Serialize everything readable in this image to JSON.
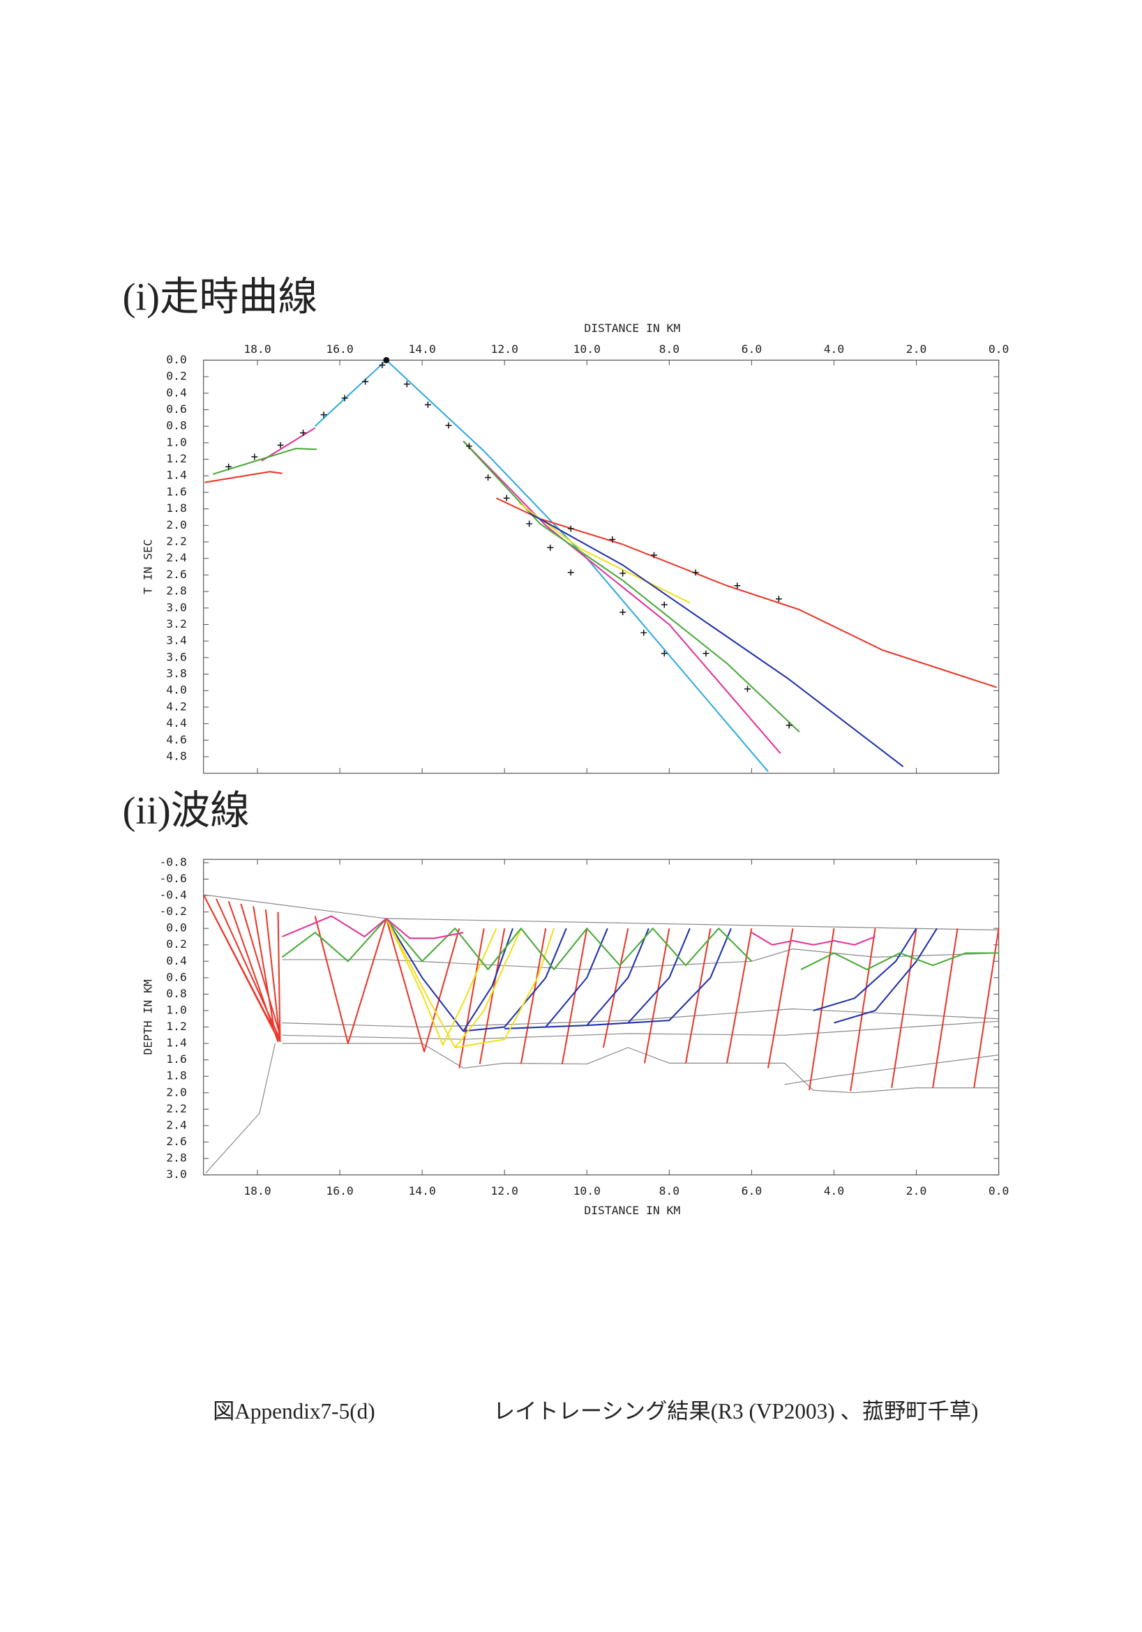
{
  "chart_data": [
    {
      "type": "line",
      "title": "(i)走時曲線",
      "xlabel": "DISTANCE IN KM",
      "ylabel": "T IN SEC",
      "xaxis_position": "top",
      "grid": false,
      "xlim": [
        19.31,
        0
      ],
      "ylim": [
        0,
        5.0
      ],
      "xticks": [
        {
          "value": 18,
          "label": "18.0"
        },
        {
          "value": 16,
          "label": "16.0"
        },
        {
          "value": 14,
          "label": "14.0"
        },
        {
          "value": 12,
          "label": "12.0"
        },
        {
          "value": 10,
          "label": "10.0"
        },
        {
          "value": 8,
          "label": "8.0"
        },
        {
          "value": 6,
          "label": "6.0"
        },
        {
          "value": 4,
          "label": "4.0"
        },
        {
          "value": 2,
          "label": "2.0"
        },
        {
          "value": 0,
          "label": "0.0"
        }
      ],
      "yticks": [
        {
          "value": 0,
          "label": "0.0"
        },
        0.2,
        0.4,
        0.6,
        0.8,
        {
          "value": 1,
          "label": "1.0"
        },
        1.2,
        1.4,
        1.6,
        1.8,
        {
          "value": 2,
          "label": "2.0"
        },
        2.2,
        2.4,
        2.6,
        2.8,
        {
          "value": 3,
          "label": "3.0"
        },
        3.2,
        3.4,
        3.6,
        3.8,
        {
          "value": 4,
          "label": "4.0"
        },
        4.2,
        4.4,
        4.6,
        4.8
      ],
      "series": [
        {
          "color": "#33aadd",
          "x": [
            16.6,
            14.87,
            12.5,
            10.0,
            5.6
          ],
          "values": [
            0.8,
            0,
            1.1,
            2.4,
            4.98
          ]
        },
        {
          "color": "#e0359a",
          "x": [
            17.9,
            16.6
          ],
          "values": [
            1.22,
            0.82
          ]
        },
        {
          "color": "#e0359a",
          "x": [
            13.0,
            11.0,
            8.0,
            5.3
          ],
          "values": [
            0.98,
            2.0,
            3.2,
            4.76
          ]
        },
        {
          "color": "#4aaa3a",
          "x": [
            19.08,
            17.07,
            16.56
          ],
          "values": [
            1.38,
            1.07,
            1.08
          ]
        },
        {
          "color": "#4aaa3a",
          "x": [
            13.0,
            11.14,
            9.12,
            6.6,
            4.84
          ],
          "values": [
            0.98,
            1.98,
            2.67,
            3.67,
            4.5
          ]
        },
        {
          "color": "#e8392c",
          "x": [
            19.28,
            17.7,
            17.4
          ],
          "values": [
            1.48,
            1.35,
            1.37
          ]
        },
        {
          "color": "#e8392c",
          "x": [
            12.2,
            11.14,
            9.13,
            6.6,
            4.84,
            2.82,
            0.05
          ],
          "values": [
            1.67,
            1.92,
            2.23,
            2.73,
            3.02,
            3.51,
            3.96
          ]
        },
        {
          "color": "#f0e020",
          "x": [
            11.65,
            10.13,
            7.49
          ],
          "values": [
            1.73,
            2.29,
            2.94
          ]
        },
        {
          "color": "#2233aa",
          "x": [
            11.4,
            9.13,
            5.1,
            2.32
          ],
          "values": [
            1.85,
            2.48,
            3.86,
            4.92
          ]
        },
        {
          "color": "#111111",
          "marker": "+",
          "x": [
            18.7,
            18.07,
            17.44,
            16.89,
            16.39,
            15.88,
            15.38,
            14.97,
            14.37,
            13.86,
            13.36,
            12.86,
            12.4,
            11.95,
            11.4,
            10.89,
            10.39,
            9.13,
            8.62,
            8.12,
            10.39,
            9.38,
            8.37,
            7.36,
            6.35,
            5.34,
            9.13,
            8.12,
            7.11,
            6.1,
            5.09
          ],
          "values": [
            1.29,
            1.17,
            1.03,
            0.88,
            0.66,
            0.46,
            0.26,
            0.06,
            0.29,
            0.54,
            0.79,
            1.04,
            1.42,
            1.67,
            1.98,
            2.27,
            2.57,
            3.05,
            3.3,
            3.55,
            2.04,
            2.17,
            2.36,
            2.57,
            2.73,
            2.89,
            2.58,
            2.96,
            3.55,
            3.98,
            4.42
          ]
        },
        {
          "color": "#111111",
          "marker": "dot",
          "x": [
            14.87
          ],
          "values": [
            0
          ]
        }
      ]
    },
    {
      "type": "line",
      "title": "(ii)波線",
      "xlabel": "DISTANCE IN KM",
      "ylabel": "DEPTH IN KM",
      "xaxis_position": "bottom",
      "grid": false,
      "xlim": [
        19.31,
        0
      ],
      "ylim": [
        -0.84,
        3.0
      ],
      "xticks": [
        {
          "value": 18,
          "label": "18.0"
        },
        {
          "value": 16,
          "label": "16.0"
        },
        {
          "value": 14,
          "label": "14.0"
        },
        {
          "value": 12,
          "label": "12.0"
        },
        {
          "value": 10,
          "label": "10.0"
        },
        {
          "value": 8,
          "label": "8.0"
        },
        {
          "value": 6,
          "label": "6.0"
        },
        {
          "value": 4,
          "label": "4.0"
        },
        {
          "value": 2,
          "label": "2.0"
        },
        {
          "value": 0,
          "label": "0.0"
        }
      ],
      "yticks": [
        -0.8,
        -0.6,
        -0.4,
        -0.2,
        {
          "value": 0,
          "label": "0.0"
        },
        0.2,
        0.4,
        0.6,
        0.8,
        {
          "value": 1,
          "label": "1.0"
        },
        1.2,
        1.4,
        1.6,
        1.8,
        {
          "value": 2,
          "label": "2.0"
        },
        2.2,
        2.4,
        2.6,
        2.8,
        {
          "value": 3,
          "label": "3.0"
        }
      ],
      "series": [
        {
          "color": "#888888",
          "x": [
            19.31,
            14.87,
            0
          ],
          "values": [
            -0.41,
            -0.12,
            0.02
          ]
        },
        {
          "color": "#888888",
          "x": [
            17.4,
            14.9,
            10.1,
            6.0,
            5.0,
            3.0,
            0
          ],
          "values": [
            0.38,
            0.38,
            0.5,
            0.4,
            0.25,
            0.35,
            0.3
          ]
        },
        {
          "color": "#888888",
          "x": [
            17.4,
            14.0,
            12.0,
            9.0,
            5.0,
            0
          ],
          "values": [
            1.15,
            1.2,
            1.17,
            1.12,
            0.98,
            1.1
          ]
        },
        {
          "color": "#888888",
          "x": [
            17.4,
            13.0,
            9.0,
            5.2,
            0
          ],
          "values": [
            1.3,
            1.35,
            1.28,
            1.3,
            1.13
          ]
        },
        {
          "color": "#888888",
          "x": [
            17.4,
            14.0,
            13.0,
            12.0,
            10.0,
            9.0,
            8.0,
            5.2,
            4.5,
            3.5,
            2.0,
            0
          ],
          "values": [
            1.4,
            1.4,
            1.7,
            1.64,
            1.65,
            1.45,
            1.64,
            1.64,
            1.97,
            2.0,
            1.94,
            1.94
          ]
        },
        {
          "color": "#888888",
          "x": [
            17.57,
            17.95,
            19.26
          ],
          "values": [
            1.4,
            2.25,
            2.98
          ]
        },
        {
          "color": "#888888",
          "x": [
            0,
            4.0,
            5.2
          ],
          "values": [
            1.54,
            1.8,
            1.9
          ]
        },
        {
          "color": "#e8392c",
          "x": [
            19.3,
            17.45,
            null,
            19.3,
            17.55,
            null,
            19.0,
            17.45,
            null,
            18.7,
            17.5,
            null,
            18.4,
            17.45,
            null,
            18.1,
            17.6,
            null,
            17.8,
            17.45,
            null,
            17.5,
            17.45
          ],
          "values": [
            -0.4,
            1.38,
            null,
            -0.4,
            1.3,
            null,
            -0.36,
            1.35,
            null,
            -0.33,
            1.38,
            null,
            -0.3,
            1.3,
            null,
            -0.27,
            1.2,
            null,
            -0.23,
            1.38,
            null,
            -0.2,
            1.38
          ]
        },
        {
          "color": "#e8392c",
          "x": [
            16.6,
            15.8,
            14.87,
            13.95,
            13.1,
            null,
            12.5,
            13.1,
            null,
            12.0,
            12.6,
            null,
            11.0,
            11.6,
            null,
            10.0,
            10.6,
            null,
            9.0,
            9.6,
            null,
            8.0,
            8.6,
            null,
            7.0,
            7.6,
            null,
            6.0,
            6.6,
            null,
            5.0,
            5.6,
            null,
            4.0,
            4.6,
            null,
            3.0,
            3.6,
            null,
            2.0,
            2.6,
            null,
            1.0,
            1.6,
            null,
            0.0,
            0.6
          ],
          "values": [
            -0.15,
            1.4,
            -0.12,
            1.5,
            0.0,
            null,
            0.0,
            1.7,
            null,
            0.0,
            1.65,
            null,
            0.0,
            1.65,
            null,
            0.0,
            1.65,
            null,
            0.0,
            1.45,
            null,
            0.0,
            1.64,
            null,
            0.0,
            1.64,
            null,
            0.0,
            1.64,
            null,
            0.0,
            1.7,
            null,
            0.0,
            1.97,
            null,
            0.0,
            1.98,
            null,
            0.0,
            1.94,
            null,
            0.0,
            1.94,
            null,
            0.0,
            1.94
          ]
        },
        {
          "color": "#2233aa",
          "x": [
            14.87,
            14.0,
            13.0,
            12.3,
            11.8,
            null,
            13.0,
            12.0,
            11.0,
            10.5,
            null,
            12.0,
            11.0,
            10.0,
            9.5,
            null,
            11.0,
            10.0,
            9.0,
            8.5,
            null,
            10.0,
            9.0,
            8.0,
            7.5,
            null,
            9.0,
            8.0,
            7.0,
            6.5,
            null,
            4.5,
            3.5,
            2.5,
            2.0,
            null,
            4.0,
            3.0,
            2.0,
            1.5
          ],
          "values": [
            -0.12,
            0.6,
            1.25,
            0.7,
            0.0,
            null,
            1.25,
            1.2,
            0.6,
            0.0,
            null,
            1.22,
            1.2,
            0.6,
            0.0,
            null,
            1.2,
            1.18,
            0.6,
            0.0,
            null,
            1.18,
            1.15,
            0.6,
            0.0,
            null,
            1.15,
            1.12,
            0.6,
            0.0,
            null,
            1.0,
            0.85,
            0.4,
            0.0,
            null,
            1.15,
            1.0,
            0.4,
            0.0
          ]
        },
        {
          "color": "#f0e020",
          "x": [
            14.87,
            14.0,
            13.5,
            13.0,
            12.2,
            null,
            14.87,
            13.8,
            13.2,
            12.5,
            11.6,
            null,
            13.2,
            12.0,
            11.2,
            10.8
          ],
          "values": [
            -0.12,
            0.8,
            1.42,
            0.9,
            0.0,
            null,
            -0.12,
            0.9,
            1.45,
            1.0,
            0.0,
            null,
            1.45,
            1.35,
            0.6,
            0.0
          ]
        },
        {
          "color": "#4aaa3a",
          "x": [
            17.4,
            16.6,
            15.8,
            14.87,
            14.0,
            13.2,
            12.4,
            11.6,
            10.8,
            10.0,
            9.2,
            8.4,
            7.6,
            6.8,
            6.0,
            null,
            4.8,
            4.0,
            3.2,
            2.4,
            1.6,
            0.8,
            0.0
          ],
          "values": [
            0.35,
            0.05,
            0.4,
            -0.12,
            0.4,
            0.0,
            0.5,
            0.0,
            0.5,
            0.0,
            0.45,
            0.0,
            0.45,
            0.0,
            0.4,
            null,
            0.5,
            0.3,
            0.5,
            0.3,
            0.45,
            0.3,
            0.3
          ]
        },
        {
          "color": "#e0359a",
          "x": [
            17.4,
            16.2,
            15.4,
            14.87,
            14.3,
            13.7,
            13.0,
            null,
            6.0,
            5.5,
            5.0,
            4.5,
            4.0,
            3.5,
            3.0
          ],
          "values": [
            0.1,
            -0.15,
            0.1,
            -0.12,
            0.12,
            0.12,
            0.05,
            null,
            0.05,
            0.2,
            0.15,
            0.2,
            0.15,
            0.2,
            0.1
          ]
        }
      ]
    }
  ],
  "caption": {
    "figure": "図Appendix7-5(d)",
    "text": "レイトレーシング結果(R3 (VP2003) 、菰野町千草)"
  }
}
